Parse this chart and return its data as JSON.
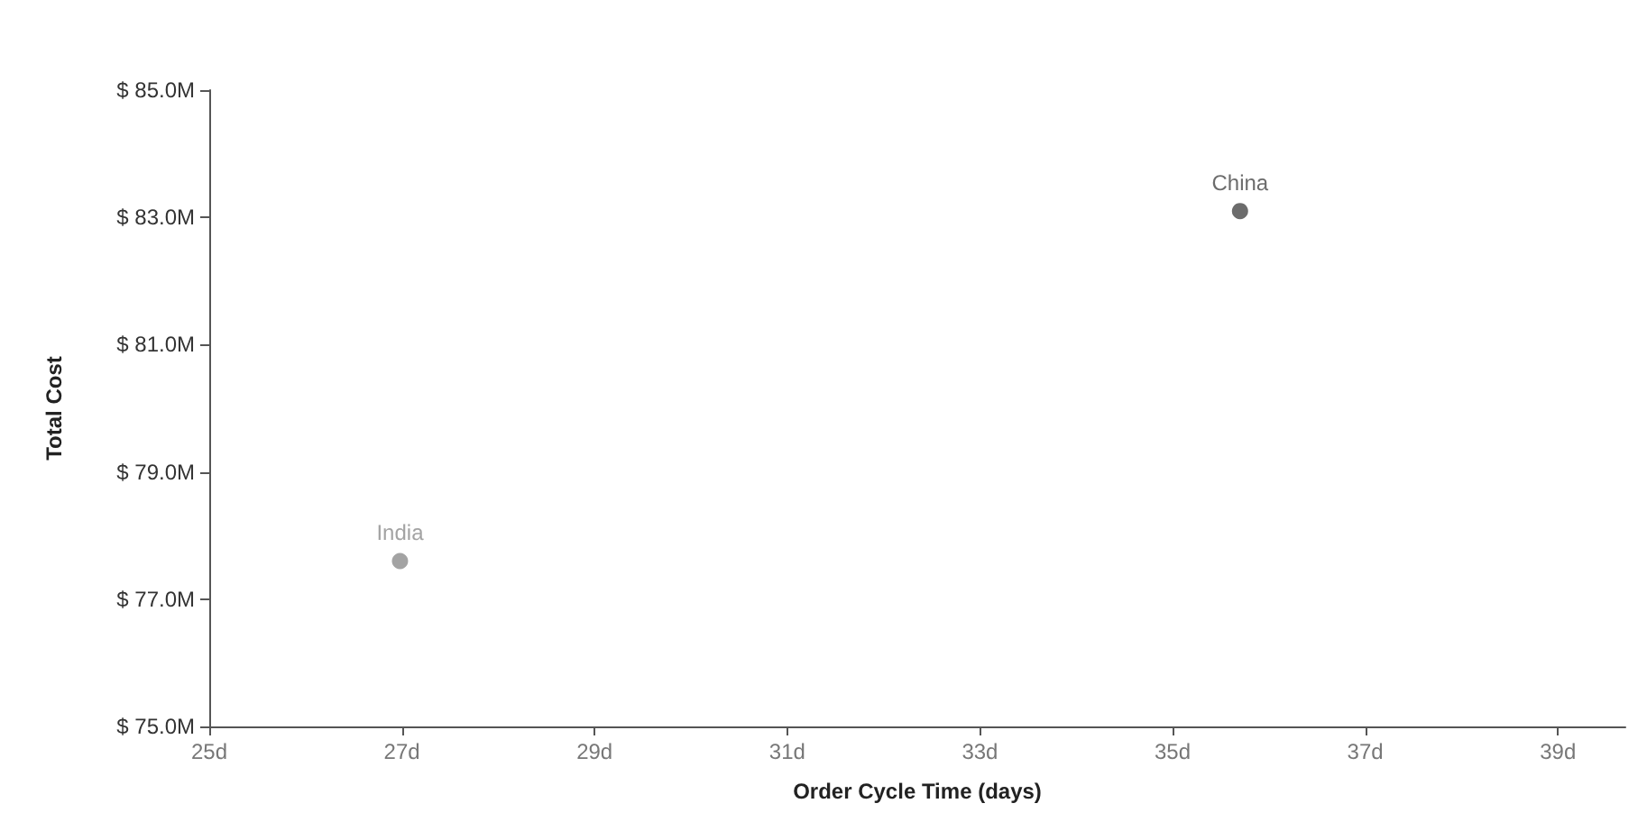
{
  "chart_data": {
    "type": "scatter",
    "xlabel": "Order Cycle Time (days)",
    "ylabel": "Total Cost",
    "series": [
      {
        "name": "India",
        "color": "#8c8c8c",
        "x": [
          26.98
        ],
        "values": [
          77.6
        ]
      },
      {
        "name": "China",
        "color": "#474747",
        "x": [
          35.7
        ],
        "values": [
          83.1
        ]
      }
    ],
    "xlim": [
      25,
      39.7
    ],
    "xticks": [
      {
        "value": 25,
        "label": "25d"
      },
      {
        "value": 27,
        "label": "27d"
      },
      {
        "value": 29,
        "label": "29d"
      },
      {
        "value": 31,
        "label": "31d"
      },
      {
        "value": 33,
        "label": "33d"
      },
      {
        "value": 35,
        "label": "35d"
      },
      {
        "value": 37,
        "label": "37d"
      },
      {
        "value": 39,
        "label": "39d"
      }
    ],
    "ylim": [
      75,
      85
    ],
    "yticks": [
      {
        "value": 75,
        "label": "$ 75.0M"
      },
      {
        "value": 77,
        "label": "$ 77.0M"
      },
      {
        "value": 79,
        "label": "$ 79.0M"
      },
      {
        "value": 81,
        "label": "$ 81.0M"
      },
      {
        "value": 83,
        "label": "$ 83.0M"
      },
      {
        "value": 85,
        "label": "$ 85.0M"
      }
    ],
    "marker": "circle",
    "grid": false,
    "legend": false
  }
}
